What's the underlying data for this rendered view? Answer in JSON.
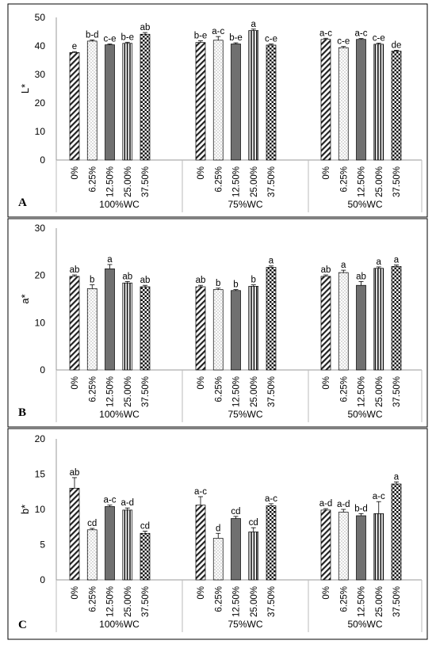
{
  "chart_data": [
    {
      "panel": "A",
      "type": "bar",
      "ylabel": "L*",
      "ylim": [
        0,
        50
      ],
      "yticks": [
        0,
        10,
        20,
        30,
        40,
        50
      ],
      "groups": [
        {
          "name": "100%WC",
          "categories": [
            "0%",
            "6.25%",
            "12.50%",
            "25.00%",
            "37.50%"
          ],
          "values": [
            37.7,
            41.7,
            40.4,
            40.9,
            44.1
          ],
          "errors": [
            0.3,
            0.4,
            0.3,
            0.4,
            0.6
          ],
          "letters": [
            "e",
            "b-d",
            "c-e",
            "b-e",
            "ab"
          ]
        },
        {
          "name": "75%WC",
          "categories": [
            "0%",
            "6.25%",
            "12.50%",
            "25.00%",
            "37.50%"
          ],
          "values": [
            41.2,
            42.0,
            40.7,
            45.4,
            40.3
          ],
          "errors": [
            0.6,
            1.3,
            0.4,
            0.5,
            0.4
          ],
          "letters": [
            "b-e",
            "a-c",
            "b-e",
            "a",
            "c-e"
          ]
        },
        {
          "name": "50%WC",
          "categories": [
            "0%",
            "6.25%",
            "12.50%",
            "25.00%",
            "37.50%"
          ],
          "values": [
            42.3,
            39.4,
            42.3,
            40.6,
            38.2
          ],
          "errors": [
            0.4,
            0.4,
            0.3,
            0.4,
            0.3
          ],
          "letters": [
            "a-c",
            "c-e",
            "a-c",
            "c-e",
            "de"
          ]
        }
      ]
    },
    {
      "panel": "B",
      "type": "bar",
      "ylabel": "a*",
      "ylim": [
        0,
        30
      ],
      "yticks": [
        0,
        10,
        20,
        30
      ],
      "groups": [
        {
          "name": "100%WC",
          "categories": [
            "0%",
            "6.25%",
            "12.50%",
            "25.00%",
            "37.50%"
          ],
          "values": [
            19.8,
            17.2,
            21.4,
            18.4,
            17.6
          ],
          "errors": [
            0.3,
            0.8,
            0.9,
            0.3,
            0.3
          ],
          "letters": [
            "ab",
            "b",
            "a",
            "ab",
            "ab"
          ]
        },
        {
          "name": "75%WC",
          "categories": [
            "0%",
            "6.25%",
            "12.50%",
            "25.00%",
            "37.50%"
          ],
          "values": [
            17.6,
            17.0,
            16.8,
            17.7,
            21.7
          ],
          "errors": [
            0.3,
            0.3,
            0.2,
            0.3,
            0.3
          ],
          "letters": [
            "ab",
            "b",
            "b",
            "b",
            "a"
          ]
        },
        {
          "name": "50%WC",
          "categories": [
            "0%",
            "6.25%",
            "12.50%",
            "25.00%",
            "37.50%"
          ],
          "values": [
            19.8,
            20.6,
            17.9,
            21.5,
            21.9
          ],
          "errors": [
            0.3,
            0.5,
            0.8,
            0.3,
            0.3
          ],
          "letters": [
            "ab",
            "a",
            "ab",
            "a",
            "a"
          ]
        }
      ]
    },
    {
      "panel": "C",
      "type": "bar",
      "ylabel": "b*",
      "ylim": [
        0,
        20
      ],
      "yticks": [
        0,
        5,
        10,
        15,
        20
      ],
      "groups": [
        {
          "name": "100%WC",
          "categories": [
            "0%",
            "6.25%",
            "12.50%",
            "25.00%",
            "37.50%"
          ],
          "values": [
            13.0,
            7.1,
            10.4,
            9.9,
            6.6
          ],
          "errors": [
            1.5,
            0.2,
            0.2,
            0.3,
            0.3
          ],
          "letters": [
            "ab",
            "cd",
            "a-c",
            "a-d",
            "cd"
          ]
        },
        {
          "name": "75%WC",
          "categories": [
            "0%",
            "6.25%",
            "12.50%",
            "25.00%",
            "37.50%"
          ],
          "values": [
            10.6,
            5.9,
            8.7,
            6.8,
            10.5
          ],
          "errors": [
            1.2,
            0.7,
            0.3,
            0.6,
            0.3
          ],
          "letters": [
            "a-c",
            "d",
            "cd",
            "cd",
            "a-c"
          ]
        },
        {
          "name": "50%WC",
          "categories": [
            "0%",
            "6.25%",
            "12.50%",
            "25.00%",
            "37.50%"
          ],
          "values": [
            9.9,
            9.6,
            9.1,
            9.4,
            13.6
          ],
          "errors": [
            0.2,
            0.4,
            0.3,
            1.7,
            0.3
          ],
          "letters": [
            "a-d",
            "a-d",
            "b-d",
            "a-c",
            "a"
          ]
        }
      ]
    }
  ]
}
